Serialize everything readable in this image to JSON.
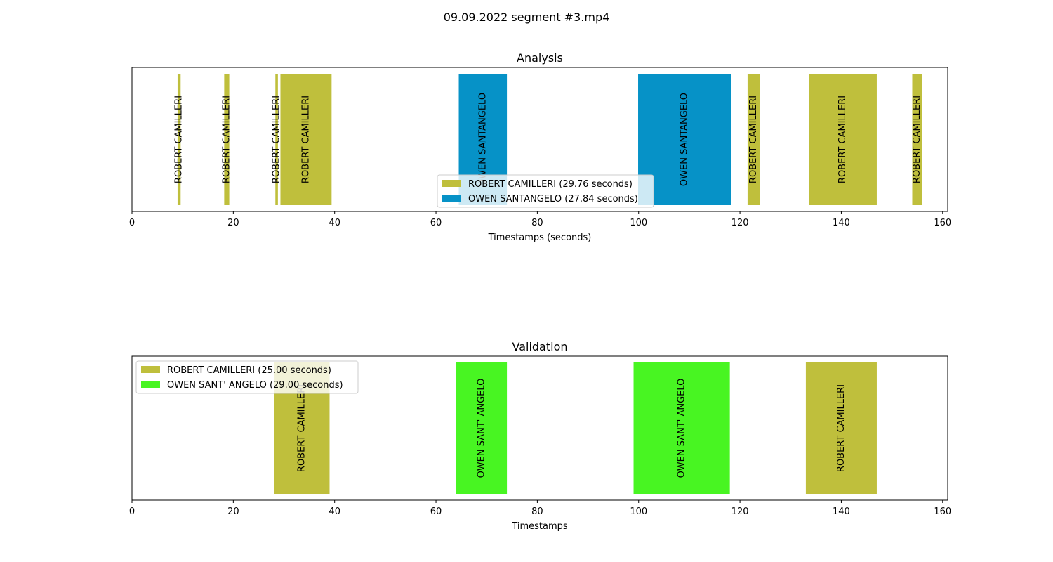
{
  "figure_title": "09.09.2022 segment #3.mp4",
  "chart_data": [
    {
      "type": "bar",
      "orientation": "horizontal-timeline",
      "title": "Analysis",
      "xlabel": "Timestamps (seconds)",
      "xlim": [
        0,
        161
      ],
      "xticks": [
        0,
        20,
        40,
        60,
        80,
        100,
        120,
        140,
        160
      ],
      "xtick_labels": [
        "0",
        "20",
        "40",
        "60",
        "80",
        "100",
        "120",
        "140",
        "160"
      ],
      "legend_position": "lower-center",
      "series": [
        {
          "name": "ROBERT CAMILLERI",
          "legend": "ROBERT CAMILLERI (29.76 seconds)",
          "color": "#bfbf3c"
        },
        {
          "name": "OWEN SANTANGELO",
          "legend": "OWEN SANTANGELO (27.84 seconds)",
          "color": "#0692c7"
        }
      ],
      "segments": [
        {
          "speaker": "ROBERT CAMILLERI",
          "start": 9.0,
          "end": 9.6,
          "label": "ROBERT CAMILLERI"
        },
        {
          "speaker": "ROBERT CAMILLERI",
          "start": 18.2,
          "end": 19.2,
          "label": "ROBERT CAMILLERI"
        },
        {
          "speaker": "ROBERT CAMILLERI",
          "start": 28.3,
          "end": 28.8,
          "label": "ROBERT CAMILLERI"
        },
        {
          "speaker": "ROBERT CAMILLERI",
          "start": 29.3,
          "end": 39.4,
          "label": "ROBERT CAMILLERI"
        },
        {
          "speaker": "OWEN SANTANGELO",
          "start": 64.5,
          "end": 74.0,
          "label": "OWEN SANTANGELO"
        },
        {
          "speaker": "OWEN SANTANGELO",
          "start": 99.9,
          "end": 118.2,
          "label": "OWEN SANTANGELO"
        },
        {
          "speaker": "ROBERT CAMILLERI",
          "start": 121.5,
          "end": 123.9,
          "label": "ROBERT CAMILLERI"
        },
        {
          "speaker": "ROBERT CAMILLERI",
          "start": 133.6,
          "end": 147.0,
          "label": "ROBERT CAMILLERI"
        },
        {
          "speaker": "ROBERT CAMILLERI",
          "start": 154.0,
          "end": 155.9,
          "label": "ROBERT CAMILLERI"
        }
      ]
    },
    {
      "type": "bar",
      "orientation": "horizontal-timeline",
      "title": "Validation",
      "xlabel": "Timestamps",
      "xlim": [
        0,
        161
      ],
      "xticks": [
        0,
        20,
        40,
        60,
        80,
        100,
        120,
        140,
        160
      ],
      "xtick_labels": [
        "0",
        "20",
        "40",
        "60",
        "80",
        "100",
        "120",
        "140",
        "160"
      ],
      "legend_position": "upper-left",
      "series": [
        {
          "name": "ROBERT CAMILLERI",
          "legend": "ROBERT CAMILLERI (25.00 seconds)",
          "color": "#bfbf3c"
        },
        {
          "name": "OWEN SANT' ANGELO",
          "legend": "OWEN SANT' ANGELO (29.00 seconds)",
          "color": "#48f522"
        }
      ],
      "segments": [
        {
          "speaker": "ROBERT CAMILLERI",
          "start": 28.0,
          "end": 39.0,
          "label": "ROBERT CAMILLERI"
        },
        {
          "speaker": "OWEN SANT' ANGELO",
          "start": 64.0,
          "end": 74.0,
          "label": "OWEN SANT' ANGELO"
        },
        {
          "speaker": "OWEN SANT' ANGELO",
          "start": 99.0,
          "end": 118.0,
          "label": "OWEN SANT' ANGELO"
        },
        {
          "speaker": "ROBERT CAMILLERI",
          "start": 133.0,
          "end": 147.0,
          "label": "ROBERT CAMILLERI"
        }
      ]
    }
  ]
}
